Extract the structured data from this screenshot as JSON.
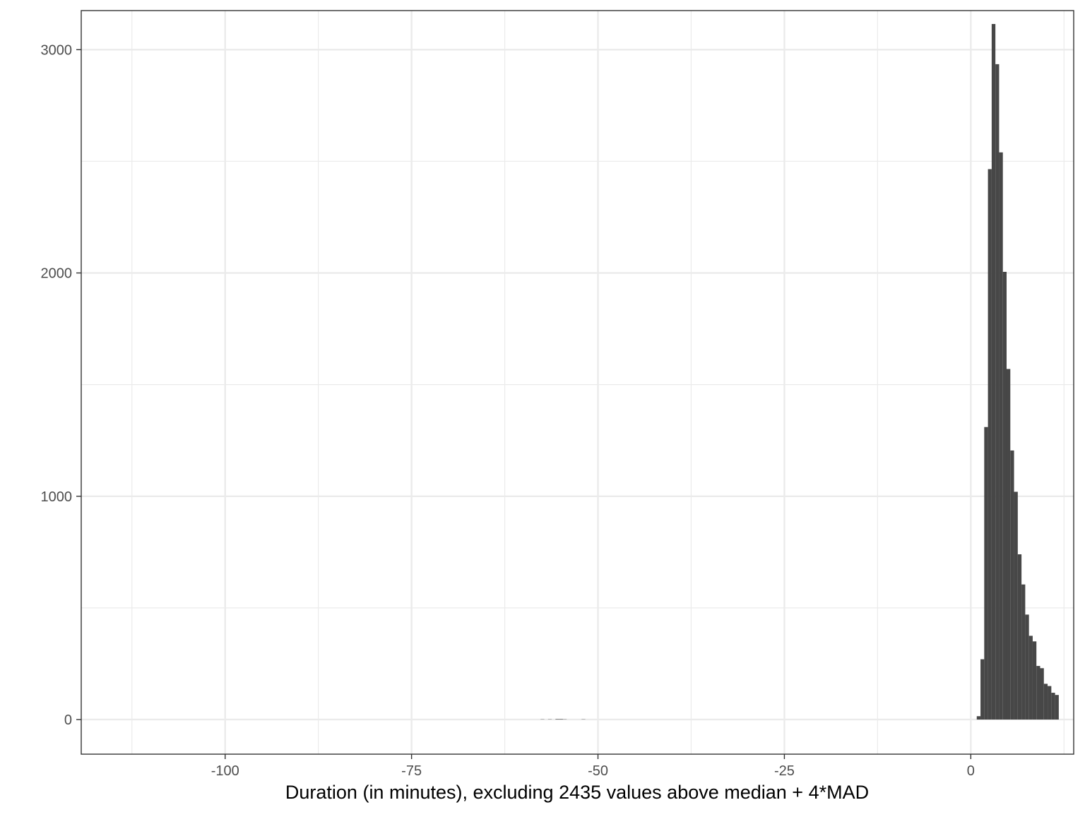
{
  "chart_data": {
    "type": "bar",
    "title": "",
    "xlabel": "Duration (in minutes), excluding 2435 values above median + 4*MAD",
    "ylabel": "",
    "xlim": [
      -119.3,
      13.8
    ],
    "ylim": [
      -155,
      3175
    ],
    "x_ticks": [
      -100,
      -75,
      -50,
      -25,
      0
    ],
    "x_tick_labels": [
      "-100",
      "-75",
      "-50",
      "-25",
      "0"
    ],
    "x_minor_ticks": [
      -112.5,
      -87.5,
      -62.5,
      -37.5,
      -12.5,
      12.5
    ],
    "y_ticks": [
      0,
      1000,
      2000,
      3000
    ],
    "y_tick_labels": [
      "0",
      "1000",
      "2000",
      "3000"
    ],
    "y_minor_ticks": [
      500,
      1500,
      2500
    ],
    "grid": true,
    "bar_color": "#474747",
    "bin_width": 0.5,
    "bins_start": [
      -57.7,
      -56.7,
      -55.7,
      -55.2,
      -54.7,
      -52.2,
      0.8,
      1.3,
      1.8,
      2.3,
      2.8,
      3.3,
      3.8,
      4.3,
      4.8,
      5.3,
      5.8,
      6.3,
      6.8,
      7.3,
      7.8,
      8.3,
      8.8,
      9.3,
      9.8,
      10.3,
      10.8,
      11.3
    ],
    "counts": [
      1,
      1,
      2,
      2,
      1,
      1,
      15,
      270,
      1310,
      2465,
      3115,
      2935,
      2540,
      2005,
      1570,
      1205,
      1020,
      740,
      605,
      470,
      375,
      350,
      240,
      230,
      160,
      150,
      120,
      110
    ]
  },
  "colors": {
    "panel_border": "#333333",
    "grid_major": "#ebebeb",
    "grid_minor": "#ebebeb",
    "tick_label": "#4d4d4d",
    "title": "#000000"
  }
}
